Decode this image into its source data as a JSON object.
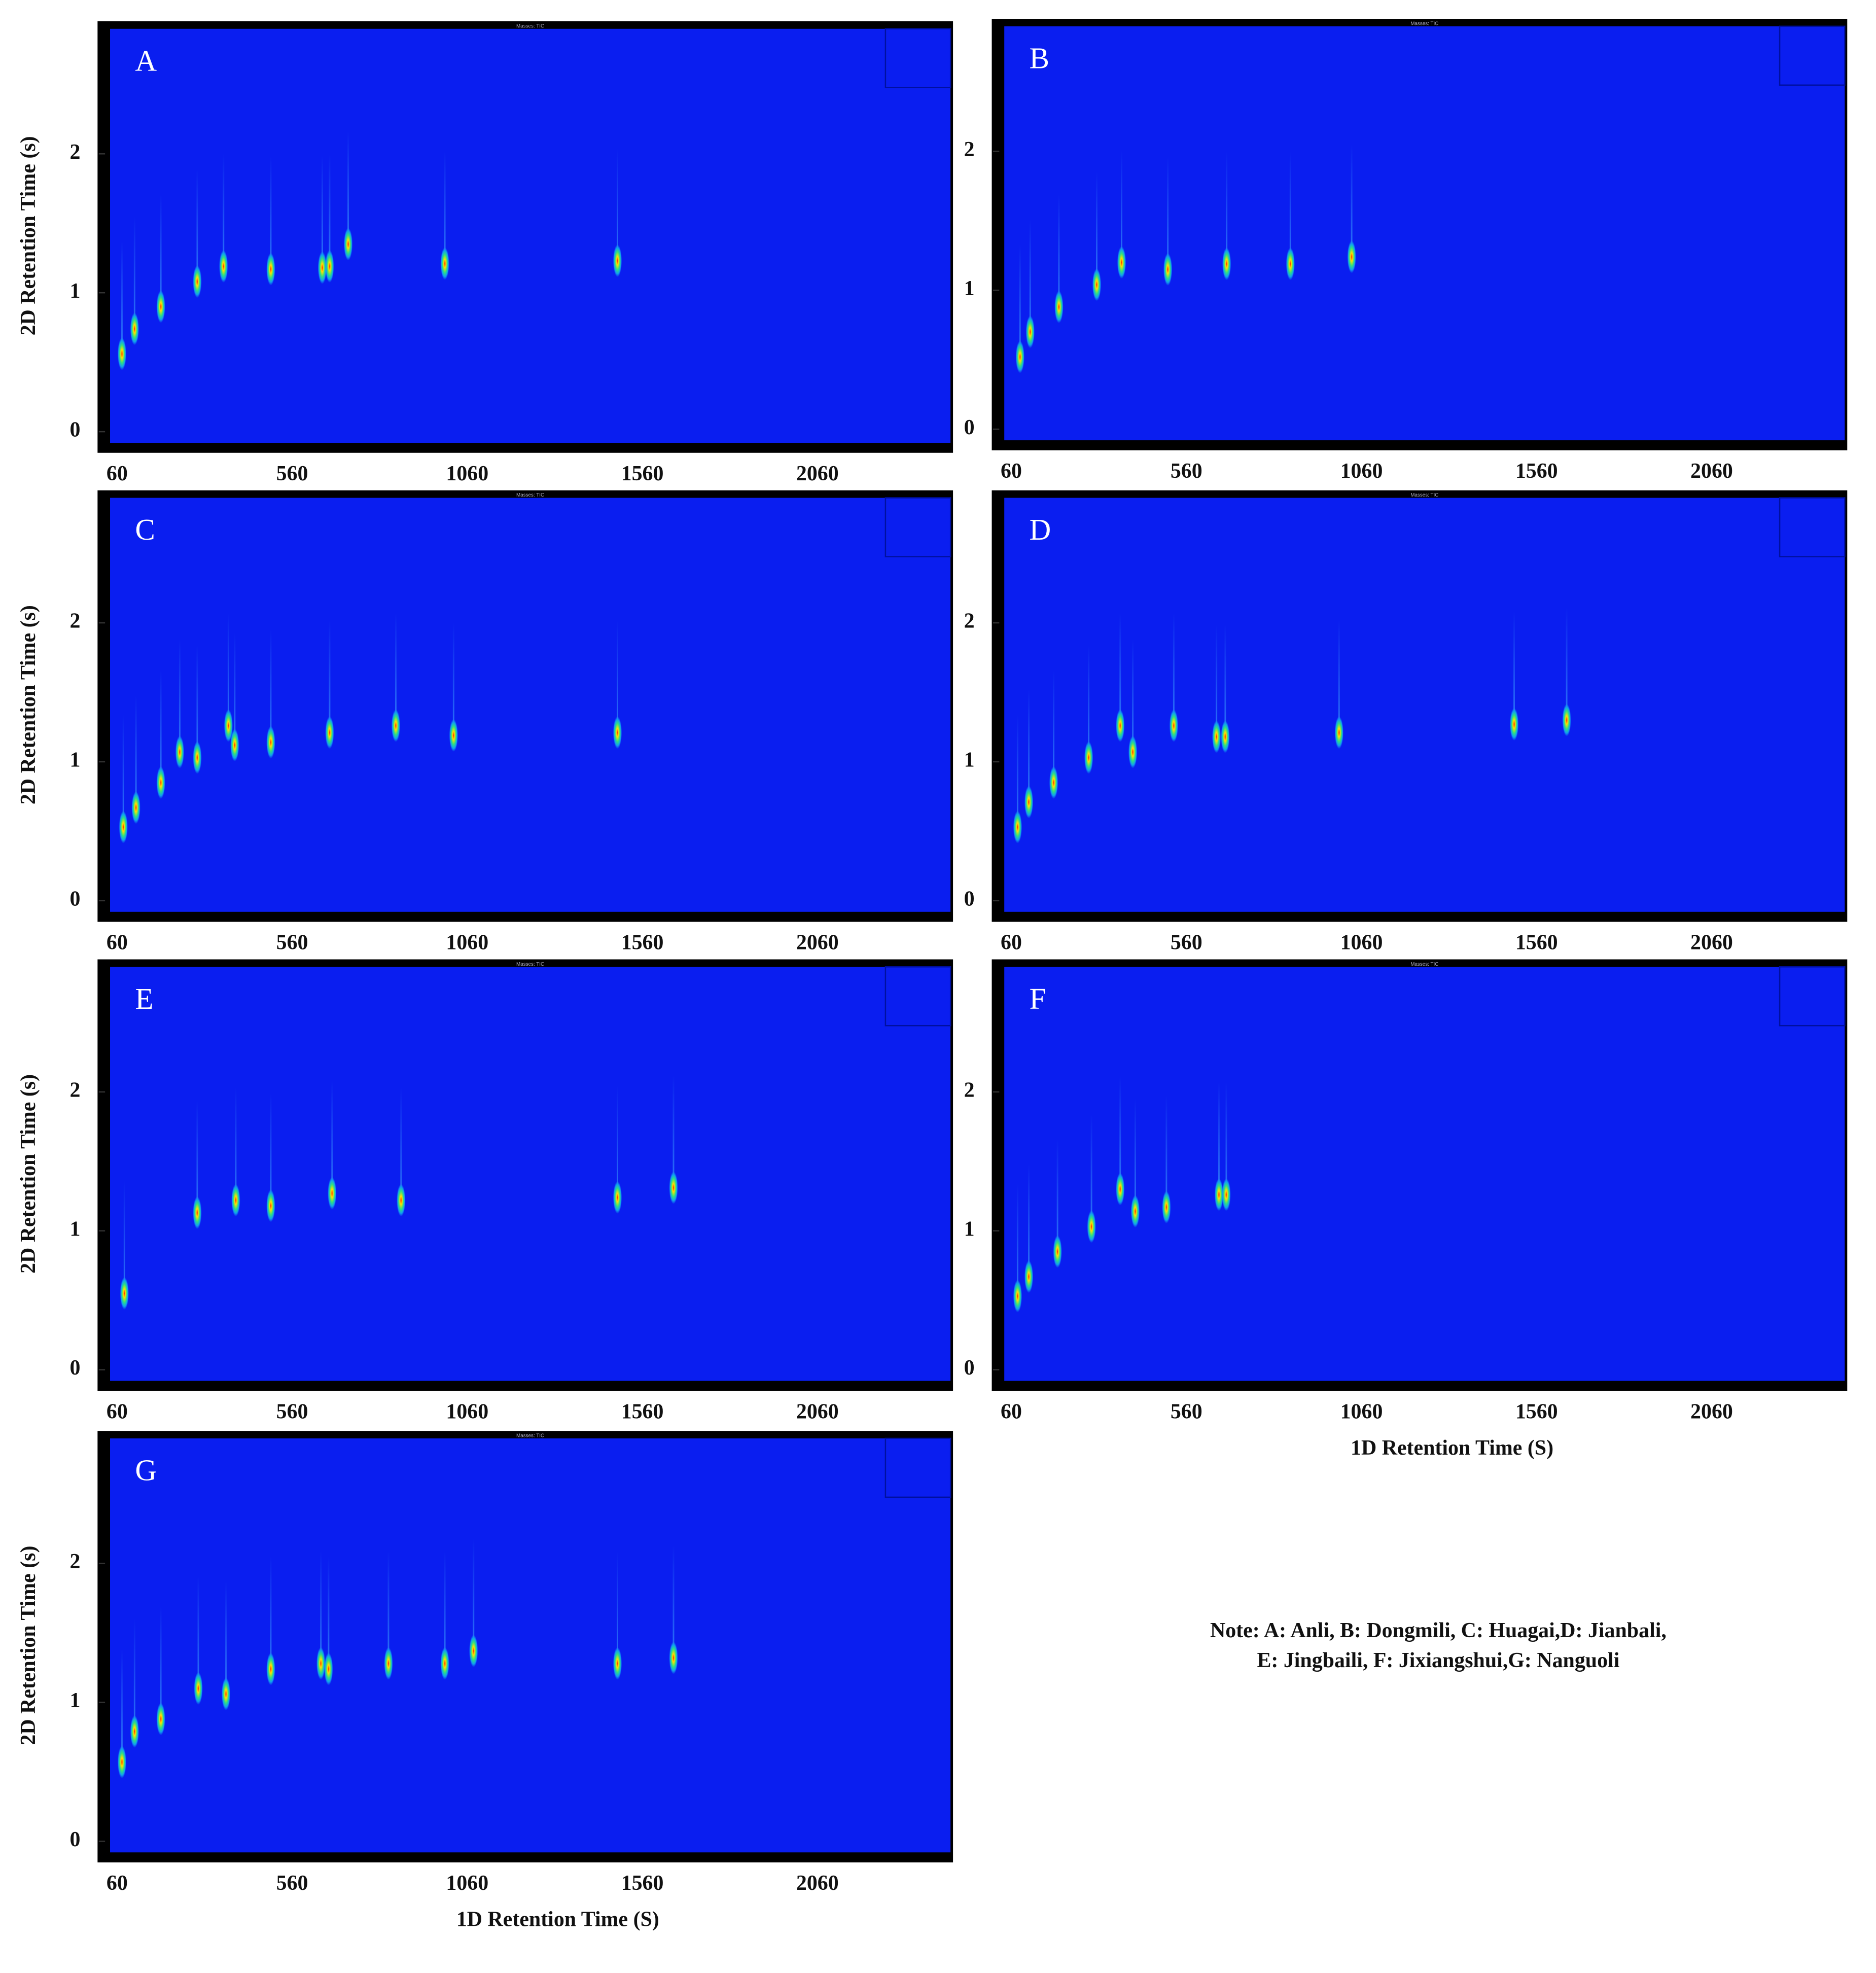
{
  "chart_data": [
    {
      "type": "scatter",
      "label": "A",
      "header": "Masses: TIC",
      "y_label": "2D Retention Time (s)",
      "x": [
        74,
        110,
        185,
        289,
        364,
        499,
        646,
        667,
        720,
        996,
        1489
      ],
      "values": [
        0.56,
        0.74,
        0.9,
        1.08,
        1.19,
        1.17,
        1.18,
        1.19,
        1.35,
        1.21,
        1.23
      ],
      "xlim": [
        40,
        2440
      ],
      "ylim": [
        -0.08,
        2.9
      ],
      "xticks": [
        60,
        560,
        1060,
        1560,
        2060
      ],
      "yticks": [
        0,
        1,
        2
      ],
      "color": "#0a1ef0"
    },
    {
      "type": "scatter",
      "label": "B",
      "header": "Masses: TIC",
      "x": [
        85,
        114,
        196,
        304,
        375,
        507,
        675,
        857,
        1032
      ],
      "values": [
        0.52,
        0.7,
        0.88,
        1.04,
        1.2,
        1.15,
        1.19,
        1.19,
        1.24
      ],
      "xlim": [
        40,
        2440
      ],
      "ylim": [
        -0.08,
        2.9
      ],
      "xticks": [
        60,
        560,
        1060,
        1560,
        2060
      ],
      "yticks": [
        0,
        1,
        2
      ],
      "color": "#0a1ef0"
    },
    {
      "type": "scatter",
      "label": "C",
      "header": "Masses: TIC",
      "y_label": "2D Retention Time (s)",
      "x": [
        78,
        114,
        185,
        239,
        289,
        378,
        396,
        499,
        667,
        856,
        1021,
        1489
      ],
      "values": [
        0.53,
        0.67,
        0.85,
        1.07,
        1.03,
        1.26,
        1.12,
        1.14,
        1.21,
        1.26,
        1.19,
        1.21
      ],
      "xlim": [
        40,
        2440
      ],
      "ylim": [
        -0.08,
        2.9
      ],
      "xticks": [
        60,
        560,
        1060,
        1560,
        2060
      ],
      "yticks": [
        0,
        1,
        2
      ],
      "color": "#0a1ef0"
    },
    {
      "type": "scatter",
      "label": "D",
      "header": "Masses: TIC",
      "x": [
        78,
        110,
        181,
        281,
        371,
        407,
        524,
        646,
        671,
        996,
        1496,
        1646
      ],
      "values": [
        0.53,
        0.71,
        0.85,
        1.03,
        1.26,
        1.07,
        1.26,
        1.18,
        1.18,
        1.21,
        1.27,
        1.3
      ],
      "xlim": [
        40,
        2440
      ],
      "ylim": [
        -0.08,
        2.9
      ],
      "xticks": [
        60,
        560,
        1060,
        1560,
        2060
      ],
      "yticks": [
        0,
        1,
        2
      ],
      "color": "#0a1ef0"
    },
    {
      "type": "scatter",
      "label": "E",
      "header": "Masses: TIC",
      "y_label": "2D Retention Time (s)",
      "x": [
        81,
        289,
        399,
        499,
        674,
        871,
        1489,
        1649
      ],
      "values": [
        0.55,
        1.13,
        1.22,
        1.18,
        1.27,
        1.22,
        1.24,
        1.31
      ],
      "xlim": [
        40,
        2440
      ],
      "ylim": [
        -0.08,
        2.9
      ],
      "xticks": [
        60,
        560,
        1060,
        1560,
        2060
      ],
      "yticks": [
        0,
        1,
        2
      ],
      "color": "#0a1ef0"
    },
    {
      "type": "scatter",
      "label": "F",
      "header": "Masses: TIC",
      "x_label": "1D Retention Time (S)",
      "x": [
        78,
        110,
        192,
        289,
        371,
        414,
        503,
        653,
        674
      ],
      "values": [
        0.53,
        0.67,
        0.85,
        1.03,
        1.3,
        1.14,
        1.17,
        1.26,
        1.26
      ],
      "xlim": [
        40,
        2440
      ],
      "ylim": [
        -0.08,
        2.9
      ],
      "xticks": [
        60,
        560,
        1060,
        1560,
        2060
      ],
      "yticks": [
        0,
        1,
        2
      ],
      "color": "#0a1ef0"
    },
    {
      "type": "scatter",
      "label": "G",
      "header": "Masses: TIC",
      "y_label": "2D Retention Time (s)",
      "x_label": "1D Retention Time (S)",
      "x": [
        74,
        110,
        185,
        292,
        371,
        499,
        642,
        664,
        835,
        996,
        1078,
        1489,
        1649
      ],
      "values": [
        0.57,
        0.79,
        0.88,
        1.1,
        1.06,
        1.24,
        1.28,
        1.24,
        1.28,
        1.28,
        1.37,
        1.28,
        1.32
      ],
      "xlim": [
        40,
        2440
      ],
      "ylim": [
        -0.08,
        2.9
      ],
      "xticks": [
        60,
        560,
        1060,
        1560,
        2060
      ],
      "yticks": [
        0,
        1,
        2
      ],
      "color": "#0a1ef0"
    }
  ],
  "note": [
    "Note: A: Anli, B: Dongmili, C: Huagai,D: Jianbali,",
    "E: Jingbaili, F: Jixiangshui,G: Nanguoli"
  ]
}
